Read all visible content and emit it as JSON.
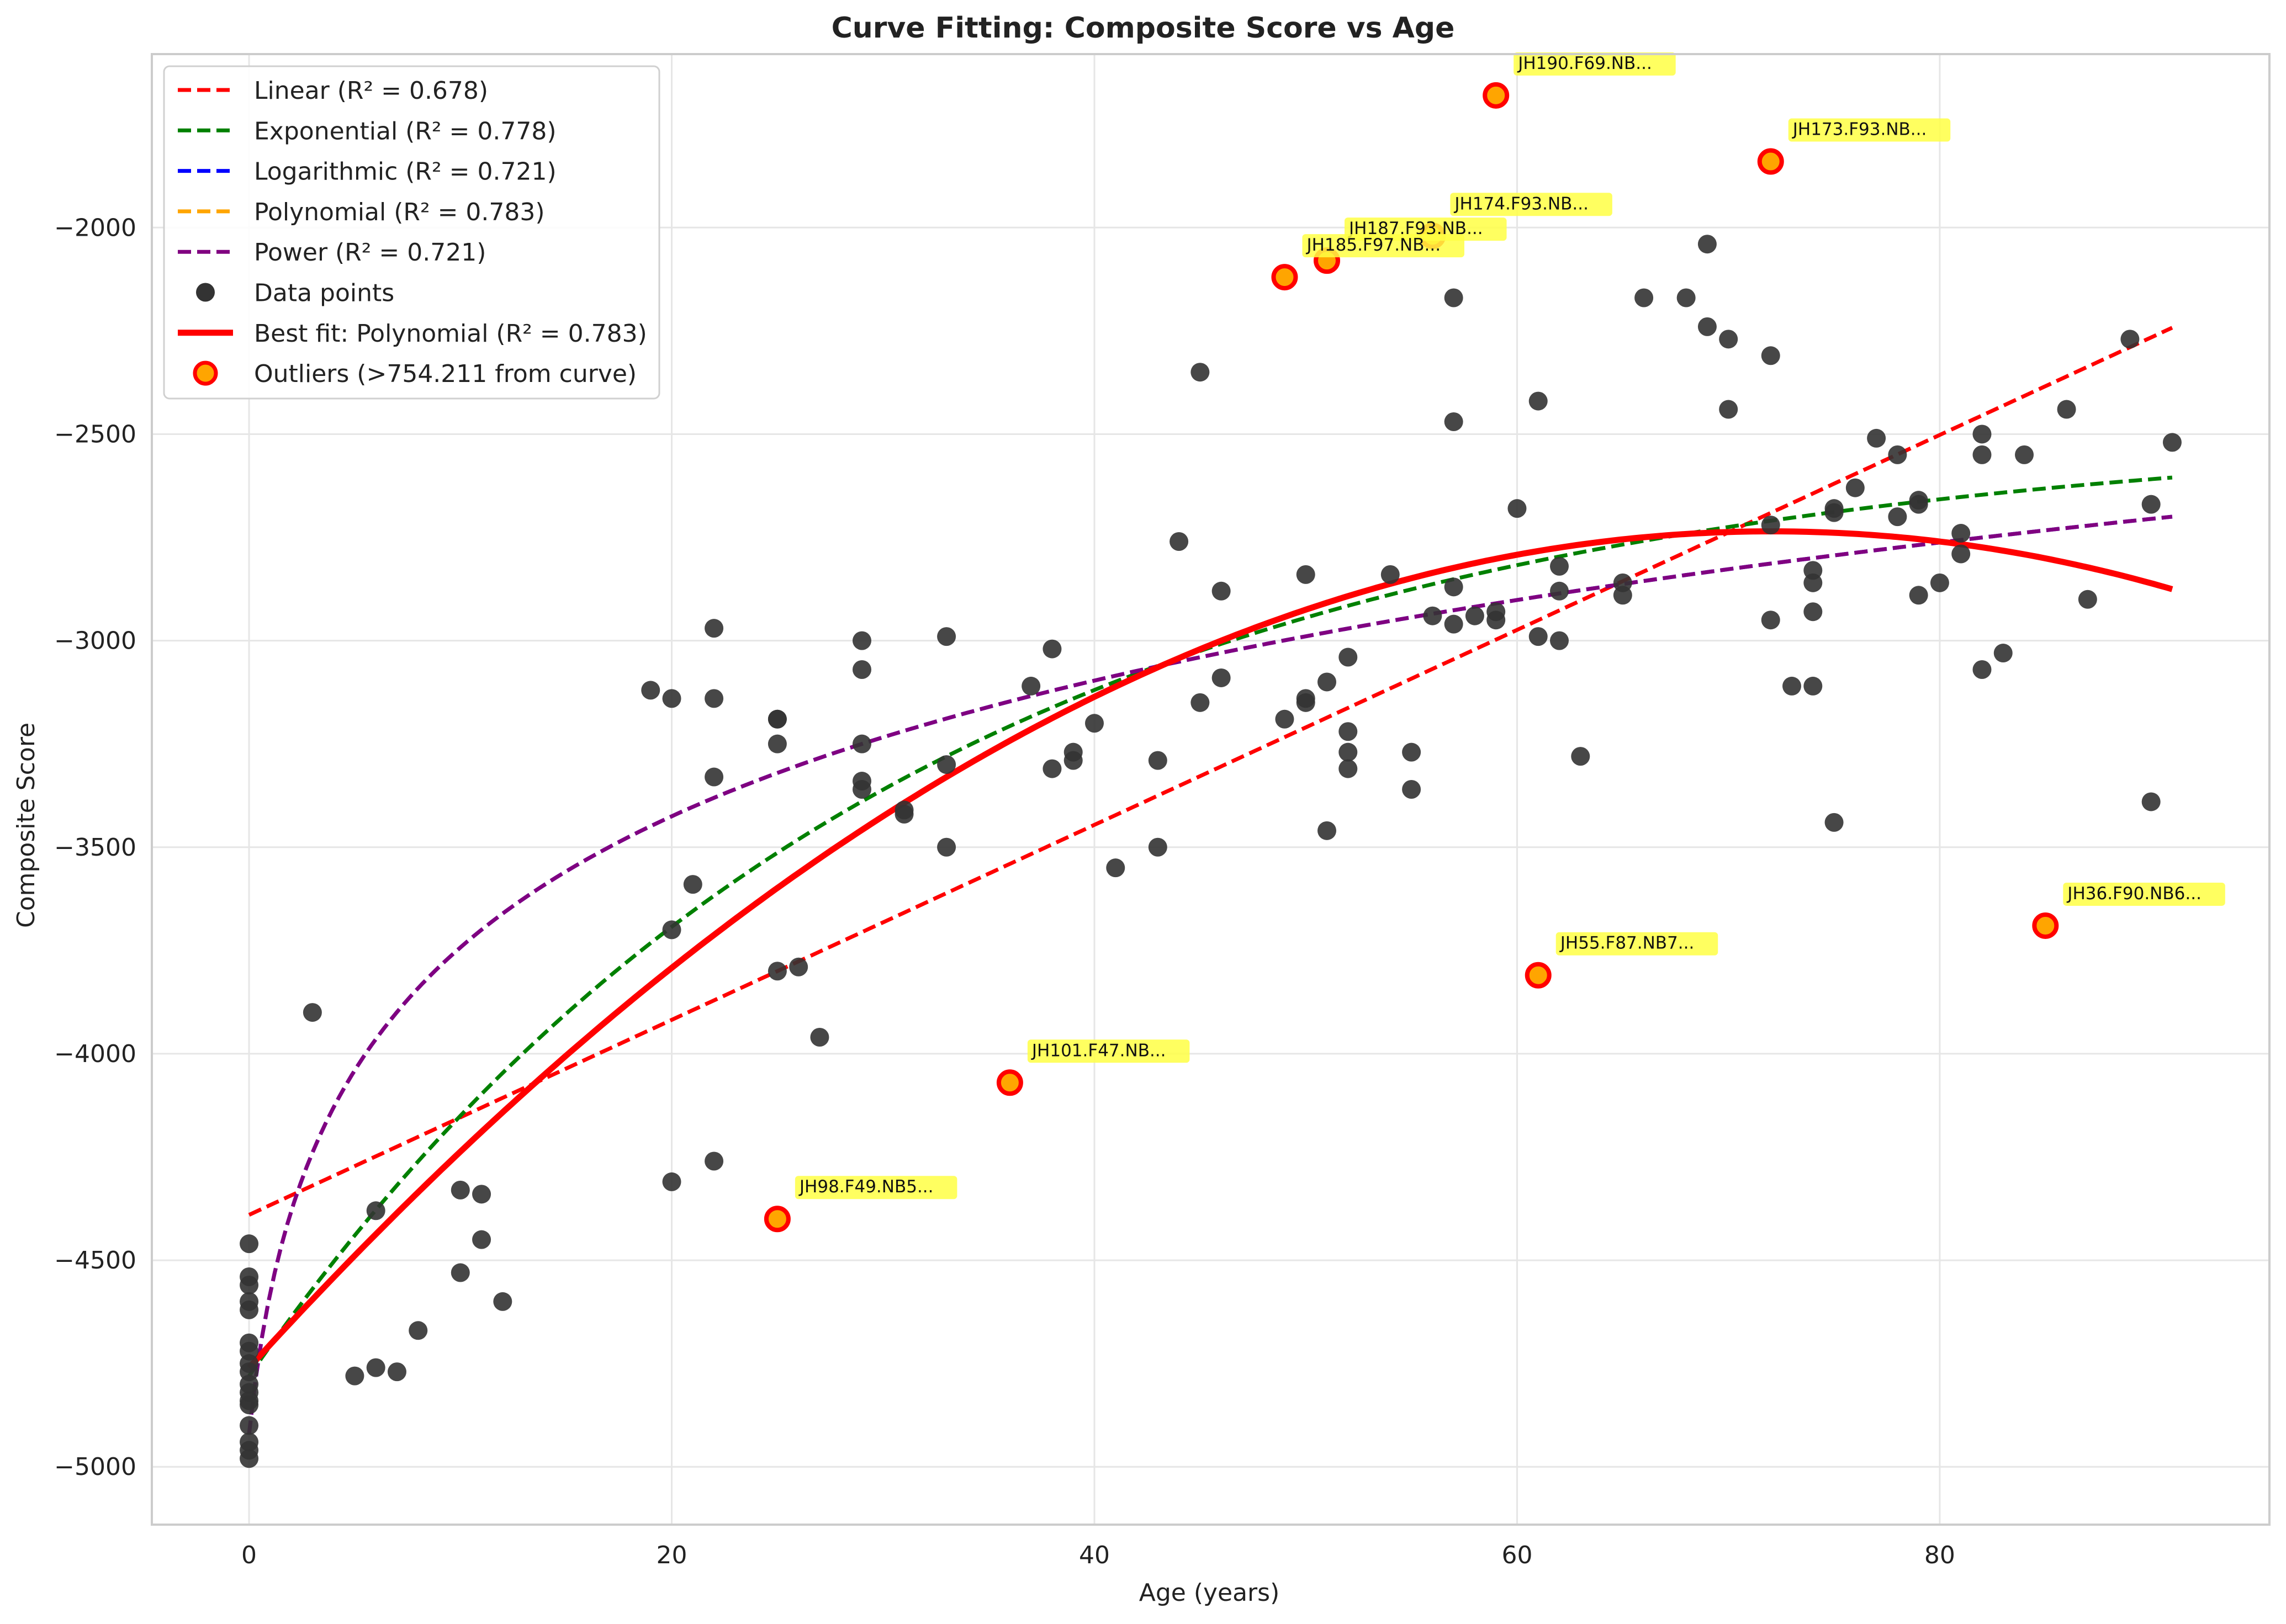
{
  "chart_data": {
    "type": "scatter",
    "title": "Curve Fitting: Composite Score vs Age",
    "xlabel": "Age (years)",
    "ylabel": "Composite Score",
    "xlim": [
      -4.6,
      95.6
    ],
    "ylim": [
      -5140,
      -1580
    ],
    "xticks": [
      0,
      20,
      40,
      60,
      80
    ],
    "yticks": [
      -5000,
      -4500,
      -4000,
      -3500,
      -3000,
      -2500,
      -2000
    ],
    "grid": true,
    "legend_position": "top-left",
    "fit_curves": [
      {
        "name": "Linear (R² = 0.678)",
        "kind": "linear",
        "color": "#ff0000",
        "style": "dashed",
        "coef": {
          "a": -4390,
          "b": 23.6
        }
      },
      {
        "name": "Exponential (R² = 0.778)",
        "kind": "exponential",
        "color": "#008000",
        "style": "dashed",
        "coef": {
          "a": -2480,
          "b": -2300,
          "k": 0.032
        }
      },
      {
        "name": "Logarithmic (R² = 0.721)",
        "kind": "logarithmic",
        "color": "#0000ff",
        "style": "dashed",
        "coef": {
          "a": -4920,
          "b": 491
        }
      },
      {
        "name": "Polynomial (R² = 0.783)",
        "kind": "polynomial",
        "color": "#ffa500",
        "style": "dashed",
        "coef": [
          -4760,
          56.2,
          -0.39
        ]
      },
      {
        "name": "Power (R² = 0.721)",
        "kind": "power",
        "color": "#800080",
        "style": "dashed",
        "coef": {
          "a": -4920,
          "b": 491
        }
      }
    ],
    "best_fit": {
      "name": "Best fit: Polynomial (R² = 0.783)",
      "kind": "polynomial",
      "color": "#ff0000",
      "coef": [
        -4760,
        56.2,
        -0.39
      ]
    },
    "series": [
      {
        "name": "Data points",
        "color": "#333333",
        "points": [
          [
            0,
            -4460
          ],
          [
            0,
            -4540
          ],
          [
            0,
            -4560
          ],
          [
            0,
            -4600
          ],
          [
            0,
            -4620
          ],
          [
            0,
            -4700
          ],
          [
            0,
            -4720
          ],
          [
            0,
            -4750
          ],
          [
            0,
            -4770
          ],
          [
            0,
            -4800
          ],
          [
            0,
            -4820
          ],
          [
            0,
            -4840
          ],
          [
            0,
            -4850
          ],
          [
            0,
            -4900
          ],
          [
            0,
            -4940
          ],
          [
            0,
            -4960
          ],
          [
            0,
            -4980
          ],
          [
            3,
            -3900
          ],
          [
            5,
            -4780
          ],
          [
            6,
            -4380
          ],
          [
            6,
            -4760
          ],
          [
            7,
            -4770
          ],
          [
            8,
            -4670
          ],
          [
            10,
            -4330
          ],
          [
            10,
            -4530
          ],
          [
            11,
            -4340
          ],
          [
            11,
            -4450
          ],
          [
            12,
            -4600
          ],
          [
            19,
            -3120
          ],
          [
            20,
            -3140
          ],
          [
            20,
            -3700
          ],
          [
            20,
            -4310
          ],
          [
            21,
            -3590
          ],
          [
            22,
            -2970
          ],
          [
            22,
            -3140
          ],
          [
            22,
            -3330
          ],
          [
            22,
            -4260
          ],
          [
            25,
            -3190
          ],
          [
            25,
            -3190
          ],
          [
            25,
            -3250
          ],
          [
            25,
            -3800
          ],
          [
            26,
            -3790
          ],
          [
            27,
            -3960
          ],
          [
            29,
            -3000
          ],
          [
            29,
            -3070
          ],
          [
            29,
            -3250
          ],
          [
            29,
            -3340
          ],
          [
            29,
            -3360
          ],
          [
            31,
            -3410
          ],
          [
            31,
            -3420
          ],
          [
            33,
            -2990
          ],
          [
            33,
            -3300
          ],
          [
            33,
            -3500
          ],
          [
            37,
            -3110
          ],
          [
            38,
            -3020
          ],
          [
            38,
            -3310
          ],
          [
            39,
            -3270
          ],
          [
            39,
            -3290
          ],
          [
            40,
            -3200
          ],
          [
            41,
            -3550
          ],
          [
            43,
            -3290
          ],
          [
            43,
            -3500
          ],
          [
            44,
            -2760
          ],
          [
            45,
            -2350
          ],
          [
            45,
            -3150
          ],
          [
            46,
            -2880
          ],
          [
            46,
            -3090
          ],
          [
            49,
            -3190
          ],
          [
            50,
            -2840
          ],
          [
            50,
            -3140
          ],
          [
            50,
            -3150
          ],
          [
            51,
            -3100
          ],
          [
            51,
            -3460
          ],
          [
            52,
            -3040
          ],
          [
            52,
            -3220
          ],
          [
            52,
            -3270
          ],
          [
            52,
            -3310
          ],
          [
            54,
            -2840
          ],
          [
            55,
            -3270
          ],
          [
            55,
            -3360
          ],
          [
            56,
            -2940
          ],
          [
            57,
            -2170
          ],
          [
            57,
            -2470
          ],
          [
            57,
            -2870
          ],
          [
            57,
            -2960
          ],
          [
            58,
            -2940
          ],
          [
            59,
            -2950
          ],
          [
            59,
            -2930
          ],
          [
            60,
            -2680
          ],
          [
            61,
            -2420
          ],
          [
            61,
            -2990
          ],
          [
            62,
            -2820
          ],
          [
            62,
            -2880
          ],
          [
            62,
            -3000
          ],
          [
            63,
            -3280
          ],
          [
            65,
            -2860
          ],
          [
            65,
            -2890
          ],
          [
            66,
            -2170
          ],
          [
            68,
            -2170
          ],
          [
            69,
            -2040
          ],
          [
            69,
            -2240
          ],
          [
            70,
            -2270
          ],
          [
            70,
            -2440
          ],
          [
            72,
            -2310
          ],
          [
            72,
            -2720
          ],
          [
            72,
            -2950
          ],
          [
            73,
            -3110
          ],
          [
            74,
            -2830
          ],
          [
            74,
            -2860
          ],
          [
            74,
            -2930
          ],
          [
            74,
            -3110
          ],
          [
            75,
            -2680
          ],
          [
            75,
            -2690
          ],
          [
            75,
            -3440
          ],
          [
            76,
            -2630
          ],
          [
            77,
            -2510
          ],
          [
            78,
            -2550
          ],
          [
            78,
            -2700
          ],
          [
            79,
            -2660
          ],
          [
            79,
            -2670
          ],
          [
            79,
            -2890
          ],
          [
            80,
            -2860
          ],
          [
            81,
            -2740
          ],
          [
            81,
            -2790
          ],
          [
            82,
            -2500
          ],
          [
            82,
            -2550
          ],
          [
            82,
            -3070
          ],
          [
            83,
            -3030
          ],
          [
            84,
            -2550
          ],
          [
            86,
            -2440
          ],
          [
            87,
            -2900
          ],
          [
            89,
            -2270
          ],
          [
            90,
            -2670
          ],
          [
            90,
            -3390
          ],
          [
            91,
            -2520
          ]
        ]
      },
      {
        "name": "Outliers (>754.211 from curve)",
        "color": "#ffa500",
        "edge": "#ff0000",
        "points": [
          {
            "x": 59,
            "y": -1680,
            "label": "JH190.F69.NB..."
          },
          {
            "x": 72,
            "y": -1840,
            "label": "JH173.F93.NB..."
          },
          {
            "x": 56,
            "y": -2020,
            "label": "JH174.F93.NB..."
          },
          {
            "x": 51,
            "y": -2080,
            "label": "JH187.F93.NB..."
          },
          {
            "x": 49,
            "y": -2120,
            "label": "JH185.F97.NB..."
          },
          {
            "x": 85,
            "y": -3690,
            "label": "JH36.F90.NB6..."
          },
          {
            "x": 61,
            "y": -3810,
            "label": "JH55.F87.NB7..."
          },
          {
            "x": 36,
            "y": -4070,
            "label": "JH101.F47.NB..."
          },
          {
            "x": 25,
            "y": -4400,
            "label": "JH98.F49.NB5..."
          }
        ]
      }
    ]
  }
}
